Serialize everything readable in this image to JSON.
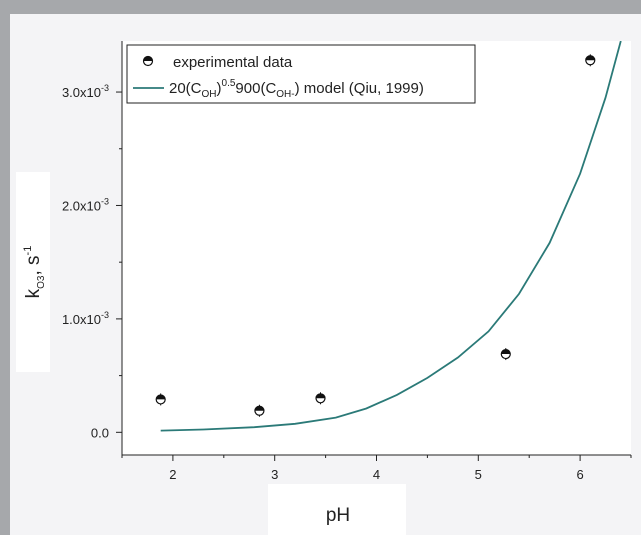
{
  "chart_data": {
    "type": "scatter",
    "xlabel": "pH",
    "ylabel": {
      "base": "k",
      "sub": "O3",
      "after": ", s",
      "sup": "-1"
    },
    "xlim": [
      1.5,
      6.5
    ],
    "ylim": [
      -0.0002,
      0.00345
    ],
    "x_ticks": [
      {
        "value": 2,
        "label": "2"
      },
      {
        "value": 3,
        "label": "3"
      },
      {
        "value": 4,
        "label": "4"
      },
      {
        "value": 5,
        "label": "5"
      },
      {
        "value": 6,
        "label": "6"
      }
    ],
    "y_ticks": [
      {
        "value": 0.0,
        "label": "0.0"
      },
      {
        "value": 0.001,
        "label": "1.0x10",
        "exp": "-3"
      },
      {
        "value": 0.002,
        "label": "2.0x10",
        "exp": "-3"
      },
      {
        "value": 0.003,
        "label": "3.0x10",
        "exp": "-3"
      }
    ],
    "series": [
      {
        "name": "experimental data",
        "kind": "points",
        "color": "#111111",
        "points": [
          {
            "x": 1.88,
            "y": 0.00029
          },
          {
            "x": 2.85,
            "y": 0.00019
          },
          {
            "x": 3.45,
            "y": 0.0003
          },
          {
            "x": 5.27,
            "y": 0.00069
          },
          {
            "x": 6.1,
            "y": 0.00328
          }
        ]
      },
      {
        "name": "20(C_OH)^0.5 900(C_OH) model (Qiu, 1999)",
        "name_parts": [
          "20(C",
          "OH",
          ")",
          "0.5",
          "900(C",
          "OH-",
          ") model (Qiu, 1999)"
        ],
        "kind": "line",
        "color": "#2b7a78",
        "points": [
          {
            "x": 1.88,
            "y": 1.5e-05
          },
          {
            "x": 2.3,
            "y": 2.5e-05
          },
          {
            "x": 2.8,
            "y": 4.5e-05
          },
          {
            "x": 3.2,
            "y": 7.5e-05
          },
          {
            "x": 3.6,
            "y": 0.00013
          },
          {
            "x": 3.9,
            "y": 0.00021
          },
          {
            "x": 4.2,
            "y": 0.00033
          },
          {
            "x": 4.5,
            "y": 0.00048
          },
          {
            "x": 4.8,
            "y": 0.00066
          },
          {
            "x": 5.1,
            "y": 0.00089
          },
          {
            "x": 5.4,
            "y": 0.00122
          },
          {
            "x": 5.7,
            "y": 0.00167
          },
          {
            "x": 6.0,
            "y": 0.00228
          },
          {
            "x": 6.25,
            "y": 0.00295
          },
          {
            "x": 6.4,
            "y": 0.00345
          }
        ]
      }
    ],
    "legend": "top-left",
    "grid": false
  }
}
